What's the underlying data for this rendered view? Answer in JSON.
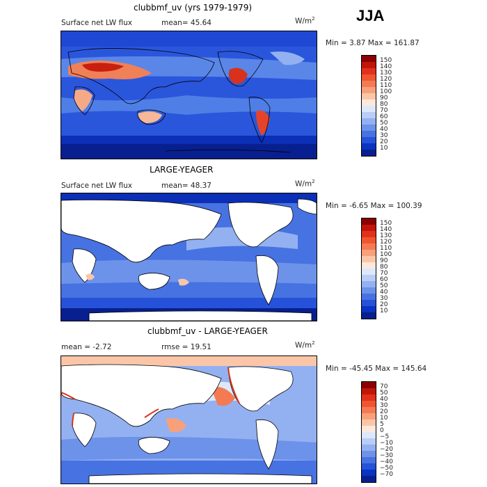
{
  "season": "JJA",
  "panels": [
    {
      "title": "clubbmf_uv (yrs 1979-1979)",
      "left_label": "Surface net LW flux",
      "stat_label": "mean=  45.64",
      "unit": "W/m",
      "unit_exp": "2",
      "minmax": "Min =   3.87 Max = 161.87",
      "colorbar_labels": [
        "150",
        "140",
        "130",
        "120",
        "110",
        "100",
        "90",
        "80",
        "70",
        "60",
        "50",
        "40",
        "30",
        "20",
        "10"
      ],
      "colorbar_colors": [
        "#8b0000",
        "#c0160a",
        "#e2301a",
        "#ef5530",
        "#f47a52",
        "#f8a07a",
        "#fbc6a8",
        "#fde8dc",
        "#dde8fa",
        "#b9cef6",
        "#93b1f1",
        "#6c92ea",
        "#4772e2",
        "#2552d8",
        "#0a33c2",
        "#081f8f"
      ]
    },
    {
      "title": "LARGE-YEAGER",
      "left_label": "Surface net LW flux",
      "stat_label": "mean=  48.37",
      "unit": "W/m",
      "unit_exp": "2",
      "minmax": "Min =  -6.65 Max = 100.39",
      "colorbar_labels": [
        "150",
        "140",
        "130",
        "120",
        "110",
        "100",
        "90",
        "80",
        "70",
        "60",
        "50",
        "40",
        "30",
        "20",
        "10"
      ],
      "colorbar_colors": [
        "#8b0000",
        "#c0160a",
        "#e2301a",
        "#ef5530",
        "#f47a52",
        "#f8a07a",
        "#fbc6a8",
        "#fde8dc",
        "#dde8fa",
        "#b9cef6",
        "#93b1f1",
        "#6c92ea",
        "#4772e2",
        "#2552d8",
        "#0a33c2",
        "#081f8f"
      ]
    },
    {
      "title": "clubbmf_uv - LARGE-YEAGER",
      "left_label": "mean =   -2.72",
      "stat_label": "rmse =  19.51",
      "unit": "W/m",
      "unit_exp": "2",
      "minmax": "Min = -45.45 Max = 145.64",
      "colorbar_labels": [
        "70",
        "50",
        "40",
        "30",
        "20",
        "10",
        "5",
        "0",
        "−5",
        "−10",
        "−20",
        "−30",
        "−40",
        "−50",
        "−70"
      ],
      "colorbar_colors": [
        "#8b0000",
        "#c0160a",
        "#e2301a",
        "#ef5530",
        "#f47a52",
        "#f8a07a",
        "#fbc6a8",
        "#fde8dc",
        "#dde8fa",
        "#b9cef6",
        "#93b1f1",
        "#6c92ea",
        "#4772e2",
        "#2552d8",
        "#0a33c2",
        "#081f8f"
      ]
    }
  ]
}
